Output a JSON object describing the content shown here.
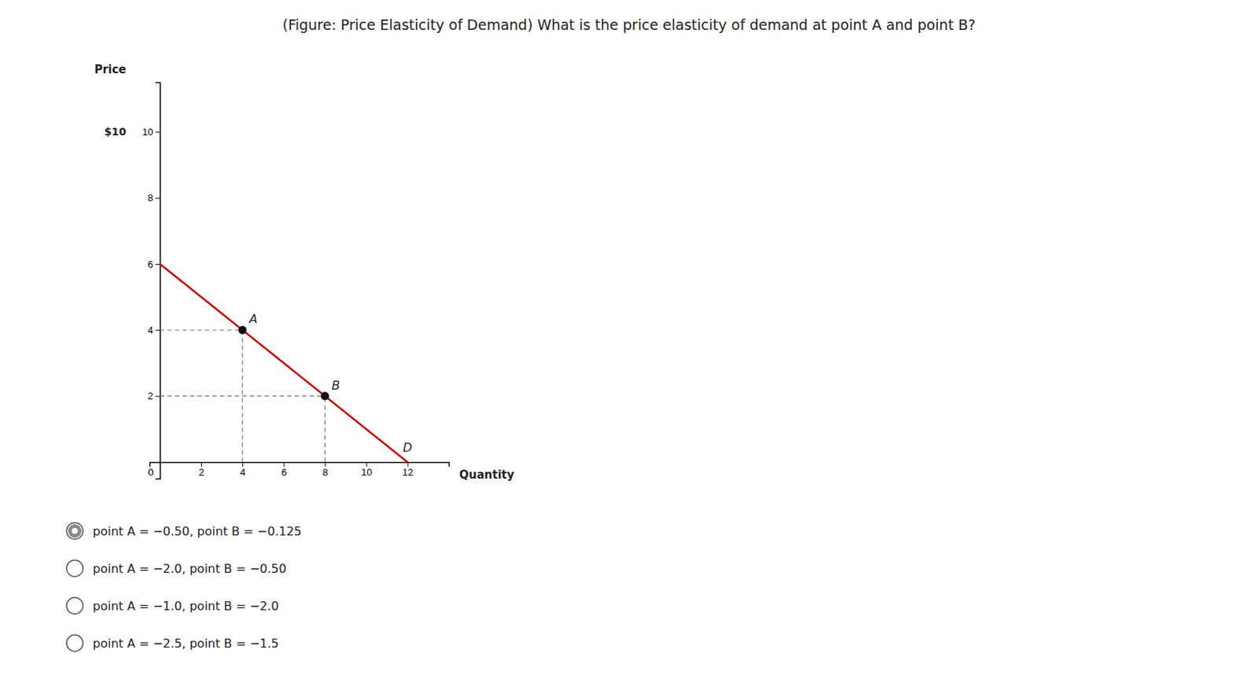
{
  "chart_data": {
    "type": "line",
    "title": "(Figure: Price Elasticity of Demand) What is the price elasticity of demand at point A and point B?",
    "xlabel": "Quantity",
    "ylabel": "Price",
    "xlim": [
      -0.5,
      14
    ],
    "ylim": [
      -0.5,
      11.5
    ],
    "xticks": [
      2,
      4,
      6,
      8,
      10,
      12
    ],
    "yticks": [
      2,
      4,
      6,
      8,
      10
    ],
    "grid": false,
    "series": [
      {
        "name": "D",
        "type": "line",
        "color": "#cc0000",
        "x": [
          0,
          12
        ],
        "values": [
          6,
          0
        ]
      },
      {
        "type": "scatter",
        "color": "#111111",
        "marker": "circle",
        "x": [
          4,
          8
        ],
        "values": [
          4,
          2
        ],
        "labels": [
          "A",
          "B"
        ],
        "drop_lines": {
          "color": "#777777",
          "line_style": "dashed"
        }
      }
    ],
    "annotations": [
      {
        "text": "$10",
        "y": 10
      },
      {
        "text": "0",
        "x": 0,
        "y": 0
      }
    ],
    "options": [
      {
        "text": "point A = −0.50, point B = −0.125",
        "selected": true
      },
      {
        "text": "point A = −2.0, point B = −0.50",
        "selected": false
      },
      {
        "text": "point A = −1.0, point B = −2.0",
        "selected": false
      },
      {
        "text": "point A = −2.5, point B = −1.5",
        "selected": false
      }
    ]
  }
}
